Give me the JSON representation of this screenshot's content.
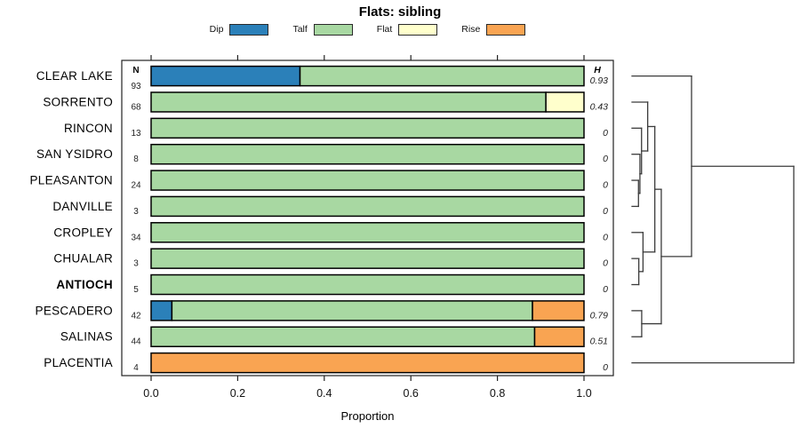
{
  "title": "Flats: sibling",
  "xlabel": "Proportion",
  "columns": {
    "n_header": "N",
    "h_header": "H"
  },
  "legend": [
    {
      "label": "Dip",
      "color": "#2b80b9"
    },
    {
      "label": "Talf",
      "color": "#a8d8a2"
    },
    {
      "label": "Flat",
      "color": "#ffffcc"
    },
    {
      "label": "Rise",
      "color": "#f9a452"
    }
  ],
  "colors": {
    "bar_border": "#000000",
    "axis": "#222222",
    "dendrogram_line": "#3b3b3b",
    "background": "#ffffff"
  },
  "chart_data": {
    "type": "bar",
    "stacked": true,
    "orientation": "horizontal",
    "title": "Flats: sibling",
    "xlabel": "Proportion",
    "xlim": [
      0,
      1
    ],
    "x_ticks": [
      0,
      0.2,
      0.4,
      0.6,
      0.8,
      1.0
    ],
    "x_tick_labels": [
      "0.0",
      "0.2",
      "0.4",
      "0.6",
      "0.8",
      "1.0"
    ],
    "legend_position": "top",
    "grid": false,
    "categories": [
      "CLEAR LAKE",
      "SORRENTO",
      "RINCON",
      "SAN YSIDRO",
      "PLEASANTON",
      "DANVILLE",
      "CROPLEY",
      "CHUALAR",
      "ANTIOCH",
      "PESCADERO",
      "SALINAS",
      "PLACENTIA"
    ],
    "bold_categories": [
      "ANTIOCH"
    ],
    "n": [
      93,
      68,
      13,
      8,
      24,
      3,
      34,
      3,
      5,
      42,
      44,
      4
    ],
    "h": [
      "0.93",
      "0.43",
      "0",
      "0",
      "0",
      "0",
      "0",
      "0",
      "0",
      "0.79",
      "0.51",
      "0"
    ],
    "series": [
      {
        "name": "Dip",
        "values": [
          0.344,
          0,
          0,
          0,
          0,
          0,
          0,
          0,
          0,
          0.048,
          0,
          0
        ]
      },
      {
        "name": "Talf",
        "values": [
          0.656,
          0.912,
          1,
          1,
          1,
          1,
          1,
          1,
          1,
          0.833,
          0.886,
          0
        ]
      },
      {
        "name": "Flat",
        "values": [
          0,
          0.088,
          0,
          0,
          0,
          0,
          0,
          0,
          0,
          0,
          0,
          0
        ]
      },
      {
        "name": "Rise",
        "values": [
          0,
          0,
          0,
          0,
          0,
          0,
          0,
          0,
          0,
          0.119,
          0.114,
          1
        ]
      }
    ]
  },
  "dendrogram": {
    "leaf_order": [
      "CLEAR LAKE",
      "SORRENTO",
      "RINCON",
      "SAN YSIDRO",
      "PLEASANTON",
      "DANVILLE",
      "CROPLEY",
      "CHUALAR",
      "ANTIOCH",
      "PESCADERO",
      "SALINAS",
      "PLACENTIA"
    ],
    "merges": [
      {
        "id": "m1",
        "children": [
          "PLEASANTON",
          "DANVILLE"
        ],
        "height": 0.04
      },
      {
        "id": "m2",
        "children": [
          "SAN YSIDRO",
          "m1"
        ],
        "height": 0.049
      },
      {
        "id": "m3",
        "children": [
          "RINCON",
          "m2"
        ],
        "height": 0.059
      },
      {
        "id": "m4",
        "children": [
          "SORRENTO",
          "m3"
        ],
        "height": 0.097
      },
      {
        "id": "m5",
        "children": [
          "CHUALAR",
          "ANTIOCH"
        ],
        "height": 0.042
      },
      {
        "id": "m6",
        "children": [
          "CROPLEY",
          "m5"
        ],
        "height": 0.068
      },
      {
        "id": "m7",
        "children": [
          "m4",
          "m6"
        ],
        "height": 0.141
      },
      {
        "id": "m8",
        "children": [
          "PESCADERO",
          "SALINAS"
        ],
        "height": 0.06
      },
      {
        "id": "m9",
        "children": [
          "m7",
          "m8"
        ],
        "height": 0.181
      },
      {
        "id": "m10",
        "children": [
          "CLEAR LAKE",
          "m9"
        ],
        "height": 0.368
      },
      {
        "id": "m11",
        "children": [
          "m10",
          "PLACENTIA"
        ],
        "height": 1.0
      }
    ]
  }
}
